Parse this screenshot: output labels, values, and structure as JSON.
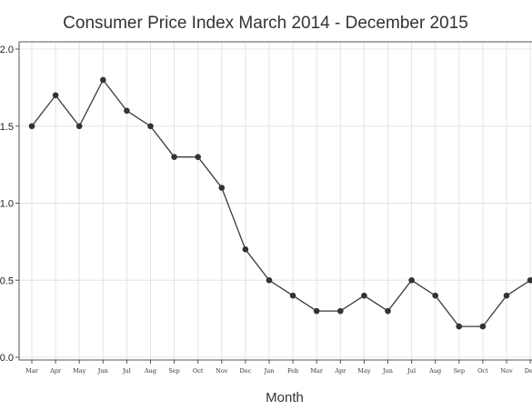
{
  "chart_data": {
    "type": "line",
    "title": "Consumer Price Index March 2014 - December 2015",
    "xlabel": "Month",
    "ylabel": "",
    "categories": [
      "Mar",
      "Apr",
      "May",
      "Jun",
      "Jul",
      "Aug",
      "Sep",
      "Oct",
      "Nov",
      "Dec",
      "Jan",
      "Feb",
      "Mar",
      "Apr",
      "May",
      "Jun",
      "Jul",
      "Aug",
      "Sep",
      "Oct",
      "Nov",
      "Dec"
    ],
    "values": [
      1.5,
      1.7,
      1.5,
      1.8,
      1.6,
      1.5,
      1.3,
      1.3,
      1.1,
      0.7,
      0.5,
      0.4,
      0.3,
      0.3,
      0.4,
      0.3,
      0.5,
      0.4,
      0.2,
      0.2,
      0.4,
      0.5
    ],
    "ylim": [
      0,
      2.0
    ],
    "yticks": [
      "2.0",
      "1.5",
      "1.0",
      "0.5",
      "0.0"
    ],
    "grid": true,
    "line_color": "#3a3a3a",
    "marker_color": "#333333",
    "grid_color": "#e4e4e4"
  }
}
